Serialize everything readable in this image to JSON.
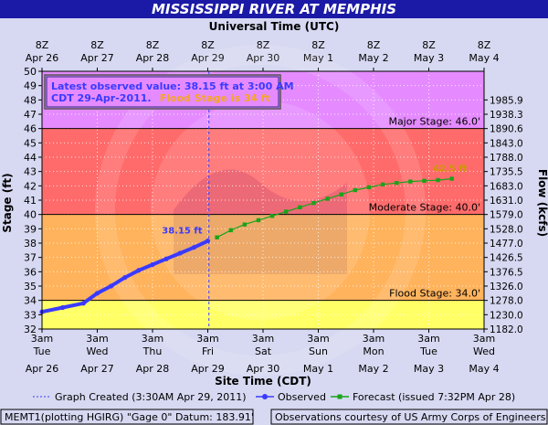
{
  "colors": {
    "background": "#d7d9f2",
    "title_bar": "#1b1aa6",
    "major": "#e58bff",
    "moderate": "#ff6b6b",
    "flood": "#ffb35c",
    "action": "#ffff66",
    "observed": "#3a3aff",
    "forecast": "#1aa31a",
    "forecast_label": "#cc9900"
  },
  "chart_data": {
    "type": "line",
    "title": "MISSISSIPPI RIVER AT MEMPHIS",
    "top_axis_title": "Universal Time (UTC)",
    "xlabel": "Site Time (CDT)",
    "ylabel": "Stage (ft)",
    "y2label": "Flow (kcfs)",
    "ylim": [
      32,
      50
    ],
    "yticks": [
      32,
      33,
      34,
      35,
      36,
      37,
      38,
      39,
      40,
      41,
      42,
      43,
      44,
      45,
      46,
      47,
      48,
      49,
      50
    ],
    "xlim": [
      "2011-04-26 03:00",
      "2011-05-04 03:00"
    ],
    "x_ticks_bottom": [
      {
        "time": "3am",
        "day": "Tue",
        "date": "Apr 26"
      },
      {
        "time": "3am",
        "day": "Wed",
        "date": "Apr 27"
      },
      {
        "time": "3am",
        "day": "Thu",
        "date": "Apr 28"
      },
      {
        "time": "3am",
        "day": "Fri",
        "date": "Apr 29"
      },
      {
        "time": "3am",
        "day": "Sat",
        "date": "Apr 30"
      },
      {
        "time": "3am",
        "day": "Sun",
        "date": "May 1"
      },
      {
        "time": "3am",
        "day": "Mon",
        "date": "May 2"
      },
      {
        "time": "3am",
        "day": "Tue",
        "date": "May 3"
      },
      {
        "time": "3am",
        "day": "Wed",
        "date": "May 4"
      }
    ],
    "x_ticks_top": [
      {
        "time": "8Z",
        "date": "Apr 26"
      },
      {
        "time": "8Z",
        "date": "Apr 27"
      },
      {
        "time": "8Z",
        "date": "Apr 28"
      },
      {
        "time": "8Z",
        "date": "Apr 29"
      },
      {
        "time": "8Z",
        "date": "Apr 30"
      },
      {
        "time": "8Z",
        "date": "May 1"
      },
      {
        "time": "8Z",
        "date": "May 2"
      },
      {
        "time": "8Z",
        "date": "May 3"
      },
      {
        "time": "8Z",
        "date": "May 4"
      }
    ],
    "flow_ticks": [
      {
        "stage": 32,
        "label": "1182.0"
      },
      {
        "stage": 33,
        "label": "1230.0"
      },
      {
        "stage": 34,
        "label": "1278.0"
      },
      {
        "stage": 35,
        "label": "1326.0"
      },
      {
        "stage": 36,
        "label": "1376.5"
      },
      {
        "stage": 37,
        "label": "1426.5"
      },
      {
        "stage": 38,
        "label": "1477.0"
      },
      {
        "stage": 39,
        "label": "1528.0"
      },
      {
        "stage": 40,
        "label": "1579.0"
      },
      {
        "stage": 41,
        "label": "1631.0"
      },
      {
        "stage": 42,
        "label": "1683.0"
      },
      {
        "stage": 43,
        "label": "1735.5"
      },
      {
        "stage": 44,
        "label": "1788.0"
      },
      {
        "stage": 45,
        "label": "1843.0"
      },
      {
        "stage": 46,
        "label": "1890.6"
      },
      {
        "stage": 47,
        "label": "1938.3"
      },
      {
        "stage": 48,
        "label": "1985.9"
      }
    ],
    "stage_bands": [
      {
        "name": "major",
        "from": 46,
        "to": 50
      },
      {
        "name": "moderate",
        "from": 40,
        "to": 46
      },
      {
        "name": "flood",
        "from": 34,
        "to": 40
      },
      {
        "name": "action",
        "from": 32,
        "to": 34
      }
    ],
    "stage_lines": [
      {
        "value": 46,
        "label": "Major Stage: 46.0'"
      },
      {
        "value": 40,
        "label": "Moderate Stage: 40.0'"
      },
      {
        "value": 34,
        "label": "Flood Stage: 34.0'"
      }
    ],
    "graph_created": "2011-04-29 03:30",
    "series": [
      {
        "name": "Observed",
        "x": [
          "2011-04-26 03:00",
          "2011-04-26 12:00",
          "2011-04-26 21:00",
          "2011-04-27 03:00",
          "2011-04-27 09:00",
          "2011-04-27 15:00",
          "2011-04-27 21:00",
          "2011-04-28 03:00",
          "2011-04-28 09:00",
          "2011-04-28 15:00",
          "2011-04-28 21:00",
          "2011-04-29 03:00"
        ],
        "values": [
          33.2,
          33.5,
          33.8,
          34.5,
          35.0,
          35.6,
          36.1,
          36.5,
          36.9,
          37.3,
          37.7,
          38.15
        ]
      },
      {
        "name": "Forecast",
        "x": [
          "2011-04-29 07:00",
          "2011-04-29 13:00",
          "2011-04-29 19:00",
          "2011-04-30 01:00",
          "2011-04-30 07:00",
          "2011-04-30 13:00",
          "2011-04-30 19:00",
          "2011-05-01 01:00",
          "2011-05-01 07:00",
          "2011-05-01 13:00",
          "2011-05-01 19:00",
          "2011-05-02 01:00",
          "2011-05-02 07:00",
          "2011-05-02 13:00",
          "2011-05-02 19:00",
          "2011-05-03 01:00",
          "2011-05-03 07:00",
          "2011-05-03 13:00"
        ],
        "values": [
          38.4,
          38.9,
          39.3,
          39.6,
          39.9,
          40.2,
          40.5,
          40.8,
          41.1,
          41.4,
          41.7,
          41.9,
          42.1,
          42.2,
          42.3,
          42.35,
          42.4,
          42.5
        ]
      }
    ],
    "point_labels": [
      {
        "series": "Observed",
        "value": 38.15,
        "text": "38.15 ft"
      },
      {
        "series": "Forecast",
        "value": 42.5,
        "text": "42.5 ft"
      }
    ],
    "annotation": {
      "line1": "Latest observed value: 38.15 ft at 3:00 AM",
      "line2_a": "CDT 29-Apr-2011.",
      "line2_b": "Flood Stage is 34 ft"
    }
  },
  "legend": {
    "graph_created": "Graph Created (3:30AM Apr 29, 2011)",
    "observed": "Observed",
    "forecast": "Forecast (issued 7:32PM Apr 28)"
  },
  "footer": {
    "left": "MEMT1(plotting HGIRG) \"Gage 0\" Datum: 183.91'",
    "right": "Observations courtesy of US Army Corps of Engineers"
  }
}
